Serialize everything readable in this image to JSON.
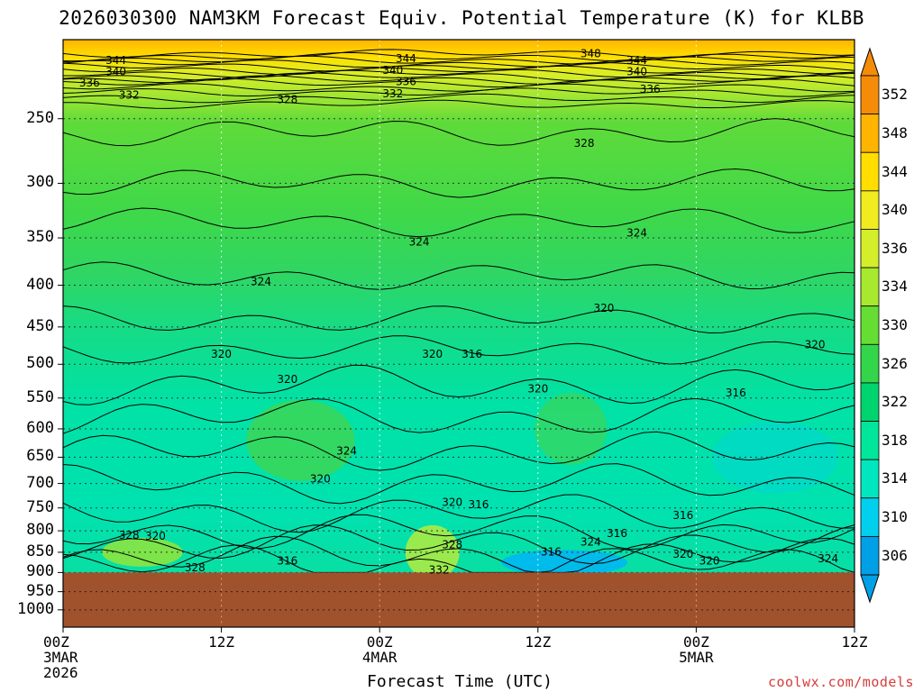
{
  "title": "2026030300 NAM3KM Forecast Equiv. Potential Temperature (K) for KLBB",
  "credit": "coolwx.com/models",
  "chart_data": {
    "type": "heatmap",
    "title": "2026030300 NAM3KM Forecast Equiv. Potential Temperature (K) for KLBB",
    "xlabel": "Forecast Time (UTC)",
    "ylabel": "",
    "x_ticks": [
      {
        "hours": 0,
        "lines": [
          "00Z",
          "3MAR",
          "2026"
        ]
      },
      {
        "hours": 12,
        "lines": [
          "12Z"
        ]
      },
      {
        "hours": 24,
        "lines": [
          "00Z",
          "4MAR"
        ]
      },
      {
        "hours": 36,
        "lines": [
          "12Z"
        ]
      },
      {
        "hours": 48,
        "lines": [
          "00Z",
          "5MAR"
        ]
      },
      {
        "hours": 60,
        "lines": [
          "12Z"
        ]
      }
    ],
    "x_range_hours": [
      0,
      60
    ],
    "y_ticks": [
      "250",
      "300",
      "350",
      "400",
      "450",
      "500",
      "550",
      "600",
      "650",
      "700",
      "750",
      "800",
      "850",
      "900",
      "950",
      "1000"
    ],
    "y_range_hpa": [
      200,
      1050
    ],
    "y_scale": "log-pressure (inverted)",
    "grid": true,
    "colorbar": {
      "levels": [
        306,
        310,
        314,
        318,
        322,
        326,
        330,
        334,
        336,
        340,
        344,
        348,
        352
      ],
      "labels": [
        "306",
        "310",
        "314",
        "318",
        "322",
        "326",
        "330",
        "334",
        "336",
        "340",
        "344",
        "348",
        "352"
      ],
      "colors": [
        "#00a0e6",
        "#00d0ee",
        "#00e6bf",
        "#00e69a",
        "#00d46e",
        "#33d64a",
        "#66dd33",
        "#a8e82e",
        "#d4ee2a",
        "#f0ec20",
        "#ffde00",
        "#ffb400",
        "#f48c0a"
      ]
    },
    "contour_labels": [
      {
        "text": "344",
        "hours": 4.0,
        "hpa": 212
      },
      {
        "text": "340",
        "hours": 4.0,
        "hpa": 219
      },
      {
        "text": "336",
        "hours": 2.0,
        "hpa": 226
      },
      {
        "text": "332",
        "hours": 5.0,
        "hpa": 234
      },
      {
        "text": "328",
        "hours": 17.0,
        "hpa": 237
      },
      {
        "text": "344",
        "hours": 26.0,
        "hpa": 211
      },
      {
        "text": "340",
        "hours": 25.0,
        "hpa": 218
      },
      {
        "text": "336",
        "hours": 26.0,
        "hpa": 225
      },
      {
        "text": "332",
        "hours": 25.0,
        "hpa": 233
      },
      {
        "text": "348",
        "hours": 40.0,
        "hpa": 208
      },
      {
        "text": "344",
        "hours": 43.5,
        "hpa": 212
      },
      {
        "text": "340",
        "hours": 43.5,
        "hpa": 219
      },
      {
        "text": "336",
        "hours": 44.5,
        "hpa": 230
      },
      {
        "text": "328",
        "hours": 39.5,
        "hpa": 268
      },
      {
        "text": "324",
        "hours": 27.0,
        "hpa": 354
      },
      {
        "text": "324",
        "hours": 43.5,
        "hpa": 345
      },
      {
        "text": "324",
        "hours": 15.0,
        "hpa": 396
      },
      {
        "text": "320",
        "hours": 41.0,
        "hpa": 427
      },
      {
        "text": "320",
        "hours": 57.0,
        "hpa": 473
      },
      {
        "text": "320",
        "hours": 12.0,
        "hpa": 486
      },
      {
        "text": "320",
        "hours": 28.0,
        "hpa": 486
      },
      {
        "text": "316",
        "hours": 31.0,
        "hpa": 486
      },
      {
        "text": "320",
        "hours": 17.0,
        "hpa": 522
      },
      {
        "text": "320",
        "hours": 36.0,
        "hpa": 536
      },
      {
        "text": "316",
        "hours": 51.0,
        "hpa": 542
      },
      {
        "text": "324",
        "hours": 21.5,
        "hpa": 639
      },
      {
        "text": "320",
        "hours": 19.5,
        "hpa": 691
      },
      {
        "text": "320",
        "hours": 29.5,
        "hpa": 738
      },
      {
        "text": "316",
        "hours": 31.5,
        "hpa": 743
      },
      {
        "text": "316",
        "hours": 47.0,
        "hpa": 766
      },
      {
        "text": "316",
        "hours": 42.0,
        "hpa": 806
      },
      {
        "text": "324",
        "hours": 40.0,
        "hpa": 826
      },
      {
        "text": "328",
        "hours": 29.5,
        "hpa": 832
      },
      {
        "text": "328",
        "hours": 5.0,
        "hpa": 810
      },
      {
        "text": "320",
        "hours": 7.0,
        "hpa": 812
      },
      {
        "text": "316",
        "hours": 17.0,
        "hpa": 871
      },
      {
        "text": "328",
        "hours": 10.0,
        "hpa": 888
      },
      {
        "text": "332",
        "hours": 28.5,
        "hpa": 893
      },
      {
        "text": "316",
        "hours": 37.0,
        "hpa": 849
      },
      {
        "text": "320",
        "hours": 47.0,
        "hpa": 854
      },
      {
        "text": "320",
        "hours": 49.0,
        "hpa": 871
      },
      {
        "text": "324",
        "hours": 58.0,
        "hpa": 866
      }
    ],
    "terrain_below_hpa": 900,
    "terrain_color": "#a0522d",
    "note_values": "Equivalent potential temperature decreasing from ~350 K near 200 hPa to ~316-324 K in the mid/lower troposphere; cold pocket ~306-310 K near 850-900 hPa around 12Z 4MAR."
  }
}
